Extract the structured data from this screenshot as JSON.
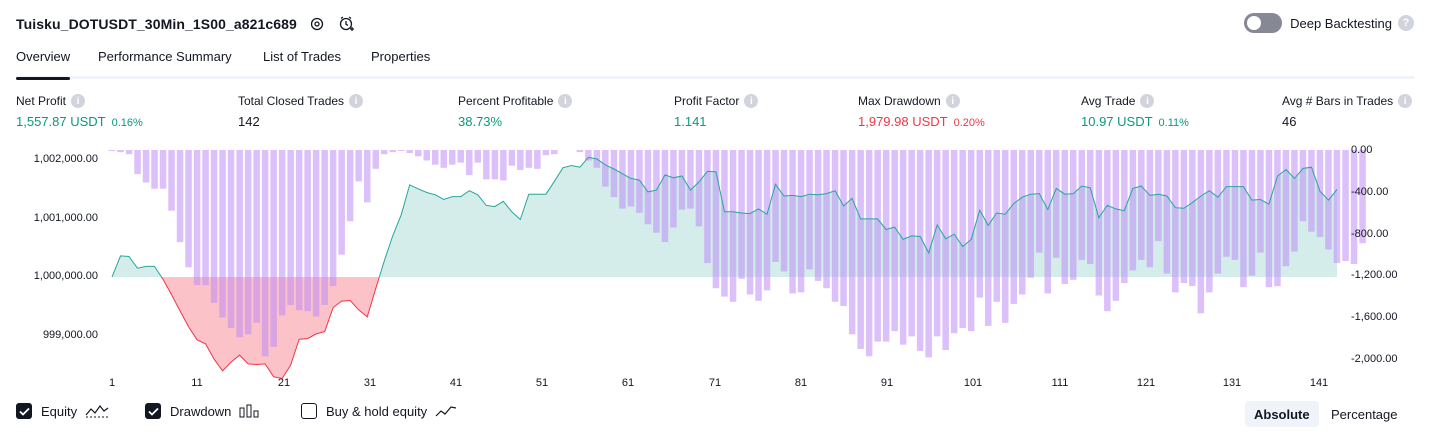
{
  "header": {
    "title": "Tuisku_DOTUSDT_30Min_1S00_a821c689",
    "deep_label": "Deep Backtesting",
    "help_glyph": "?"
  },
  "tabs": [
    "Overview",
    "Performance Summary",
    "List of Trades",
    "Properties"
  ],
  "info_glyph": "i",
  "metrics": [
    {
      "label": "Net Profit",
      "value": "1,557.87 USDT",
      "pct": "0.16%",
      "color": "#089981"
    },
    {
      "label": "Total Closed Trades",
      "value": "142",
      "pct": "",
      "color": "#131722"
    },
    {
      "label": "Percent Profitable",
      "value": "38.73%",
      "pct": "",
      "color": "#089981"
    },
    {
      "label": "Profit Factor",
      "value": "1.141",
      "pct": "",
      "color": "#089981"
    },
    {
      "label": "Max Drawdown",
      "value": "1,979.98 USDT",
      "pct": "0.20%",
      "color": "#f23645"
    },
    {
      "label": "Avg Trade",
      "value": "10.97 USDT",
      "pct": "0.11%",
      "color": "#089981"
    },
    {
      "label": "Avg # Bars in Trades",
      "value": "46",
      "pct": "",
      "color": "#131722"
    }
  ],
  "legend": {
    "equity": "Equity",
    "drawdown": "Drawdown",
    "buyhold": "Buy & hold equity"
  },
  "scale_toggle": {
    "absolute": "Absolute",
    "percentage": "Percentage",
    "selected": "Absolute"
  },
  "chart_data": {
    "type": "line+bar",
    "x_ticks": [
      "1",
      "11",
      "21",
      "31",
      "41",
      "51",
      "61",
      "71",
      "81",
      "91",
      "101",
      "111",
      "121",
      "131",
      "141"
    ],
    "y_left_ticks": [
      "1,002,000.00",
      "1,001,000.00",
      "1,000,000.00",
      "999,000.00"
    ],
    "y_left_values": [
      1002000,
      1001000,
      1000000,
      999000
    ],
    "y_right_ticks": [
      "0.00",
      "-400.00",
      "-800.00",
      "-1,200.00",
      "-1,600.00",
      "-2,000.00"
    ],
    "y_right_values": [
      0,
      -400,
      -800,
      -1200,
      -1600,
      -2000
    ],
    "baseline": 1000000,
    "colors": {
      "up_line": "#26a69a",
      "down_line": "#f23645",
      "up_fill": "rgba(38,166,154,0.2)",
      "down_fill": "rgba(242,54,69,0.3)",
      "bar": "rgba(190,140,245,0.55)"
    },
    "series": [
      {
        "name": "Equity",
        "values": [
          1000000,
          1000360,
          1000350,
          1000150,
          1000180,
          1000180,
          999960,
          999700,
          999420,
          999150,
          998930,
          998860,
          998600,
          998400,
          998550,
          998670,
          998520,
          998510,
          998520,
          998300,
          998270,
          998500,
          998940,
          998950,
          999030,
          999070,
          999480,
          999590,
          999600,
          999440,
          999320,
          999800,
          1000270,
          1000700,
          1001060,
          1001570,
          1001500,
          1001440,
          1001400,
          1001320,
          1001370,
          1001370,
          1001470,
          1001400,
          1001220,
          1001200,
          1001290,
          1001110,
          1000980,
          1001410,
          1001410,
          1001410,
          1001630,
          1001860,
          1001900,
          1001870,
          1002040,
          1002010,
          1001910,
          1001840,
          1001760,
          1001680,
          1001650,
          1001450,
          1001480,
          1001740,
          1001690,
          1001720,
          1001480,
          1001620,
          1001800,
          1001790,
          1001110,
          1001110,
          1001090,
          1001080,
          1001160,
          1001070,
          1001580,
          1001380,
          1001390,
          1001370,
          1001410,
          1001400,
          1001420,
          1001470,
          1001210,
          1001340,
          1000990,
          1000990,
          1000990,
          1000810,
          1000850,
          1000640,
          1000700,
          1000690,
          1000410,
          1000890,
          1000650,
          1000730,
          1000520,
          1000640,
          1001140,
          1000880,
          1001090,
          1001070,
          1001250,
          1001360,
          1001410,
          1001420,
          1001150,
          1001510,
          1001410,
          1001420,
          1001550,
          1001520,
          1001010,
          1001220,
          1001160,
          1001130,
          1001510,
          1001550,
          1001390,
          1001410,
          1001380,
          1001180,
          1001170,
          1001270,
          1001380,
          1001470,
          1001360,
          1001540,
          1001540,
          1001540,
          1001310,
          1001320,
          1001240,
          1001720,
          1001830,
          1001680,
          1001850,
          1001870,
          1001460,
          1001310,
          1001490
        ]
      },
      {
        "name": "Drawdown",
        "values": [
          -10,
          -20,
          -40,
          -230,
          -310,
          -370,
          -370,
          -580,
          -880,
          -1120,
          -1290,
          -1290,
          -1460,
          -1600,
          -1700,
          -1790,
          -1760,
          -1650,
          -1970,
          -1880,
          -1580,
          -1480,
          -1530,
          -1540,
          -1590,
          -1480,
          -1300,
          -1000,
          -680,
          -300,
          -500,
          -180,
          -40,
          -20,
          -10,
          -30,
          -60,
          -100,
          -140,
          -170,
          -140,
          -120,
          -240,
          -120,
          -280,
          -280,
          -290,
          -150,
          -190,
          -170,
          -180,
          -50,
          -40,
          0,
          0,
          -20,
          -100,
          -170,
          -350,
          -450,
          -560,
          -540,
          -600,
          -710,
          -790,
          -880,
          -740,
          -570,
          -560,
          -730,
          -1080,
          -1320,
          -1400,
          -1450,
          -1230,
          -1380,
          -1440,
          -1340,
          -1070,
          -1160,
          -1370,
          -1360,
          -1140,
          -1250,
          -1320,
          -1450,
          -1490,
          -1760,
          -1900,
          -1970,
          -1830,
          -1830,
          -1730,
          -1860,
          -1780,
          -1920,
          -1980,
          -1780,
          -1910,
          -1750,
          -1700,
          -1730,
          -1410,
          -1680,
          -1450,
          -1650,
          -1470,
          -1380,
          -1220,
          -980,
          -1370,
          -1030,
          -1280,
          -1240,
          -1050,
          -1090,
          -1390,
          -1540,
          -1440,
          -1270,
          -1150,
          -1050,
          -1120,
          -870,
          -1180,
          -1360,
          -1270,
          -1300,
          -1560,
          -1360,
          -1180,
          -1020,
          -1050,
          -1310,
          -1200,
          -980,
          -1310,
          -1300,
          -1110,
          -970,
          -680,
          -780,
          -830,
          -950,
          -1080,
          -1060,
          -1090,
          -890
        ]
      }
    ]
  }
}
